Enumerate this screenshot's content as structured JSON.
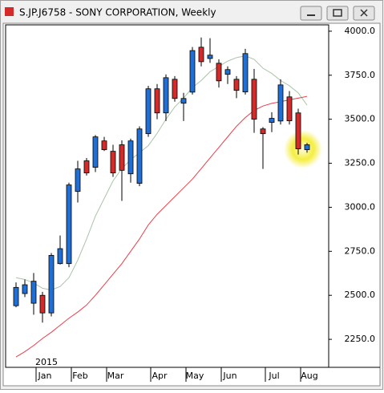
{
  "chart_data": {
    "type": "candlestick",
    "title": "S.JP.J6758 - SONY CORPORATION, Weekly",
    "annotation": "2015",
    "categories": [
      null,
      null,
      null,
      "Jan",
      null,
      null,
      null,
      "Feb",
      null,
      null,
      null,
      "Mar",
      null,
      null,
      null,
      null,
      "Apr",
      null,
      null,
      null,
      "May",
      null,
      null,
      null,
      "Jun",
      null,
      null,
      null,
      null,
      "Jul",
      null,
      null,
      null,
      "Aug"
    ],
    "open": [
      2441,
      2510,
      2455,
      2500,
      2400,
      2680,
      2680,
      3090,
      3264,
      3227,
      3377,
      3318,
      3355,
      3190,
      3136,
      3418,
      3673,
      3536,
      3727,
      3591,
      3654,
      3909,
      3845,
      3818,
      3755,
      3727,
      3655,
      3727,
      3445,
      3482,
      3490,
      3627,
      3536,
      3327
    ],
    "high": [
      2573,
      2590,
      2627,
      2520,
      2740,
      2840,
      3140,
      3264,
      3280,
      3410,
      3400,
      3355,
      3380,
      3390,
      3460,
      3690,
      3700,
      3755,
      3745,
      3650,
      3910,
      3964,
      3960,
      3840,
      3800,
      3745,
      3900,
      3786,
      3455,
      3540,
      3727,
      3660,
      3560,
      3365
    ],
    "low": [
      2432,
      2490,
      2390,
      2345,
      2380,
      2675,
      2660,
      3027,
      3180,
      3200,
      3320,
      3173,
      3036,
      3140,
      3120,
      3400,
      3500,
      3490,
      3600,
      3490,
      3640,
      3800,
      3820,
      3680,
      3700,
      3620,
      3640,
      3423,
      3218,
      3427,
      3470,
      3470,
      3300,
      3310
    ],
    "close": [
      2545,
      2560,
      2580,
      2400,
      2727,
      2765,
      3127,
      3218,
      3195,
      3400,
      3327,
      3195,
      3210,
      3377,
      3445,
      3673,
      3536,
      3736,
      3618,
      3618,
      3890,
      3827,
      3864,
      3718,
      3782,
      3664,
      3873,
      3500,
      3418,
      3505,
      3695,
      3491,
      3332,
      3355
    ],
    "up_color": "#1f6fd6",
    "down_color": "#d42a2a",
    "lines": [
      {
        "color": "#a9c4a9",
        "values": [
          2600,
          2590,
          2570,
          2540,
          2530,
          2550,
          2600,
          2700,
          2820,
          2950,
          3050,
          3150,
          3220,
          3270,
          3310,
          3350,
          3420,
          3500,
          3570,
          3620,
          3680,
          3720,
          3770,
          3800,
          3830,
          3850,
          3860,
          3840,
          3790,
          3760,
          3720,
          3690,
          3650,
          3580
        ]
      },
      {
        "color": "#e8404a",
        "values": [
          2150,
          2180,
          2215,
          2255,
          2290,
          2330,
          2370,
          2405,
          2445,
          2500,
          2560,
          2620,
          2680,
          2750,
          2820,
          2900,
          2960,
          3010,
          3060,
          3110,
          3160,
          3220,
          3280,
          3340,
          3400,
          3460,
          3510,
          3550,
          3575,
          3590,
          3600,
          3610,
          3620,
          3630
        ]
      }
    ],
    "ylim": [
      2091,
      4036
    ],
    "yticks": [
      {
        "value": 2250,
        "label": "2250.0"
      },
      {
        "value": 2500,
        "label": "2500.0"
      },
      {
        "value": 2750,
        "label": "2750.0"
      },
      {
        "value": 3000,
        "label": "3000.0"
      },
      {
        "value": 3250,
        "label": "3250.0"
      },
      {
        "value": 3500,
        "label": "3500.0"
      },
      {
        "value": 3750,
        "label": "3750.0"
      },
      {
        "value": 4000,
        "label": "4000.0"
      }
    ]
  }
}
